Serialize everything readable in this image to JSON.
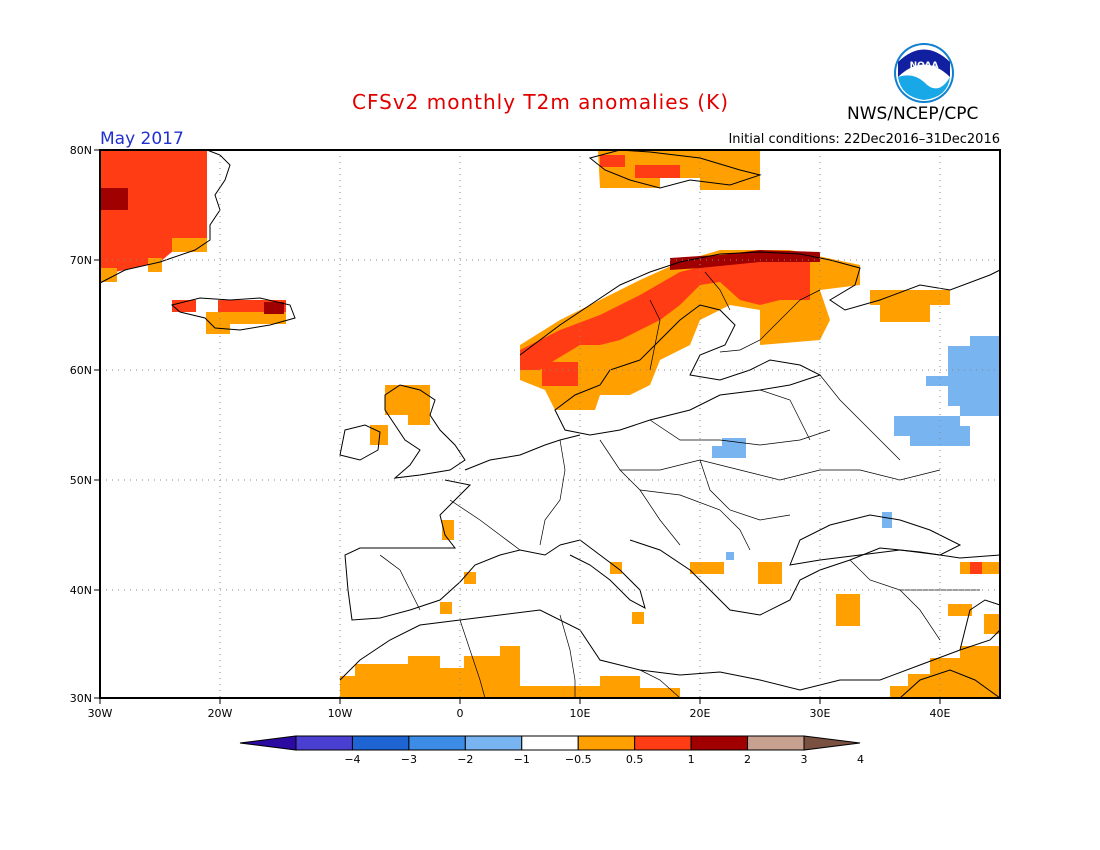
{
  "header": {
    "title": "CFSv2 monthly T2m anomalies (K)",
    "agency": "NWS/NCEP/CPC",
    "logo_text": "NOAA",
    "month": "May 2017",
    "initial_conditions": "Initial conditions: 22Dec2016–31Dec2016"
  },
  "map": {
    "lat_labels": [
      "80N",
      "70N",
      "60N",
      "50N",
      "40N",
      "30N"
    ],
    "lon_labels": [
      "30W",
      "20W",
      "10W",
      "0",
      "10E",
      "20E",
      "30E",
      "40E"
    ]
  },
  "colorbar": {
    "labels": [
      "−4",
      "−3",
      "−2",
      "−1",
      "−0.5",
      "0.5",
      "1",
      "2",
      "3",
      "4"
    ],
    "colors": [
      "#2a0aa0",
      "#4a3fd0",
      "#1e64d2",
      "#3c8ce6",
      "#78b4f0",
      "#ffffff",
      "#ffa000",
      "#ff3c14",
      "#a00000",
      "#c8a090",
      "#7a5040"
    ]
  },
  "anomaly_colors": {
    "light_warm": "#ffa000",
    "warm": "#ff3c14",
    "hot": "#a00000",
    "cool": "#78b4f0"
  }
}
